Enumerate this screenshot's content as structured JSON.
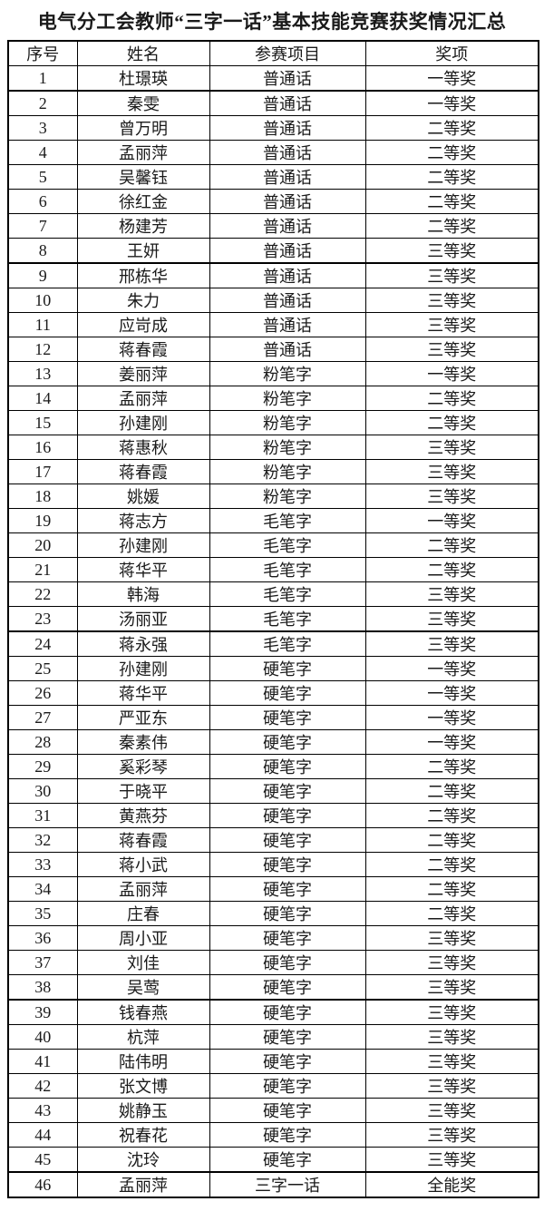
{
  "title": "电气分工会教师“三字一话”基本技能竞赛获奖情况汇总",
  "colors": {
    "text": "#1a1a1a",
    "border": "#000000",
    "background": "#ffffff"
  },
  "table": {
    "headers": [
      "序号",
      "姓名",
      "参赛项目",
      "奖项"
    ],
    "thick_border_after_rows": [
      1,
      8,
      23,
      38,
      45
    ],
    "rows": [
      [
        "1",
        "杜璟瑛",
        "普通话",
        "一等奖"
      ],
      [
        "2",
        "秦雯",
        "普通话",
        "一等奖"
      ],
      [
        "3",
        "曾万明",
        "普通话",
        "二等奖"
      ],
      [
        "4",
        "孟丽萍",
        "普通话",
        "二等奖"
      ],
      [
        "5",
        "吴馨钰",
        "普通话",
        "二等奖"
      ],
      [
        "6",
        "徐红金",
        "普通话",
        "二等奖"
      ],
      [
        "7",
        "杨建芳",
        "普通话",
        "二等奖"
      ],
      [
        "8",
        "王妍",
        "普通话",
        "三等奖"
      ],
      [
        "9",
        "邢栋华",
        "普通话",
        "三等奖"
      ],
      [
        "10",
        "朱力",
        "普通话",
        "三等奖"
      ],
      [
        "11",
        "应岢成",
        "普通话",
        "三等奖"
      ],
      [
        "12",
        "蒋春霞",
        "普通话",
        "三等奖"
      ],
      [
        "13",
        "姜丽萍",
        "粉笔字",
        "一等奖"
      ],
      [
        "14",
        "孟丽萍",
        "粉笔字",
        "二等奖"
      ],
      [
        "15",
        "孙建刚",
        "粉笔字",
        "二等奖"
      ],
      [
        "16",
        "蒋惠秋",
        "粉笔字",
        "三等奖"
      ],
      [
        "17",
        "蒋春霞",
        "粉笔字",
        "三等奖"
      ],
      [
        "18",
        "姚媛",
        "粉笔字",
        "三等奖"
      ],
      [
        "19",
        "蒋志方",
        "毛笔字",
        "一等奖"
      ],
      [
        "20",
        "孙建刚",
        "毛笔字",
        "二等奖"
      ],
      [
        "21",
        "蒋华平",
        "毛笔字",
        "二等奖"
      ],
      [
        "22",
        "韩海",
        "毛笔字",
        "三等奖"
      ],
      [
        "23",
        "汤丽亚",
        "毛笔字",
        "三等奖"
      ],
      [
        "24",
        "蒋永强",
        "毛笔字",
        "三等奖"
      ],
      [
        "25",
        "孙建刚",
        "硬笔字",
        "一等奖"
      ],
      [
        "26",
        "蒋华平",
        "硬笔字",
        "一等奖"
      ],
      [
        "27",
        "严亚东",
        "硬笔字",
        "一等奖"
      ],
      [
        "28",
        "秦素伟",
        "硬笔字",
        "一等奖"
      ],
      [
        "29",
        "奚彩琴",
        "硬笔字",
        "二等奖"
      ],
      [
        "30",
        "于晓平",
        "硬笔字",
        "二等奖"
      ],
      [
        "31",
        "黄燕芬",
        "硬笔字",
        "二等奖"
      ],
      [
        "32",
        "蒋春霞",
        "硬笔字",
        "二等奖"
      ],
      [
        "33",
        "蒋小武",
        "硬笔字",
        "二等奖"
      ],
      [
        "34",
        "孟丽萍",
        "硬笔字",
        "二等奖"
      ],
      [
        "35",
        "庄春",
        "硬笔字",
        "二等奖"
      ],
      [
        "36",
        "周小亚",
        "硬笔字",
        "三等奖"
      ],
      [
        "37",
        "刘佳",
        "硬笔字",
        "三等奖"
      ],
      [
        "38",
        "吴莺",
        "硬笔字",
        "三等奖"
      ],
      [
        "39",
        "钱春燕",
        "硬笔字",
        "三等奖"
      ],
      [
        "40",
        "杭萍",
        "硬笔字",
        "三等奖"
      ],
      [
        "41",
        "陆伟明",
        "硬笔字",
        "三等奖"
      ],
      [
        "42",
        "张文博",
        "硬笔字",
        "三等奖"
      ],
      [
        "43",
        "姚静玉",
        "硬笔字",
        "三等奖"
      ],
      [
        "44",
        "祝春花",
        "硬笔字",
        "三等奖"
      ],
      [
        "45",
        "沈玲",
        "硬笔字",
        "三等奖"
      ],
      [
        "46",
        "孟丽萍",
        "三字一话",
        "全能奖"
      ]
    ]
  }
}
